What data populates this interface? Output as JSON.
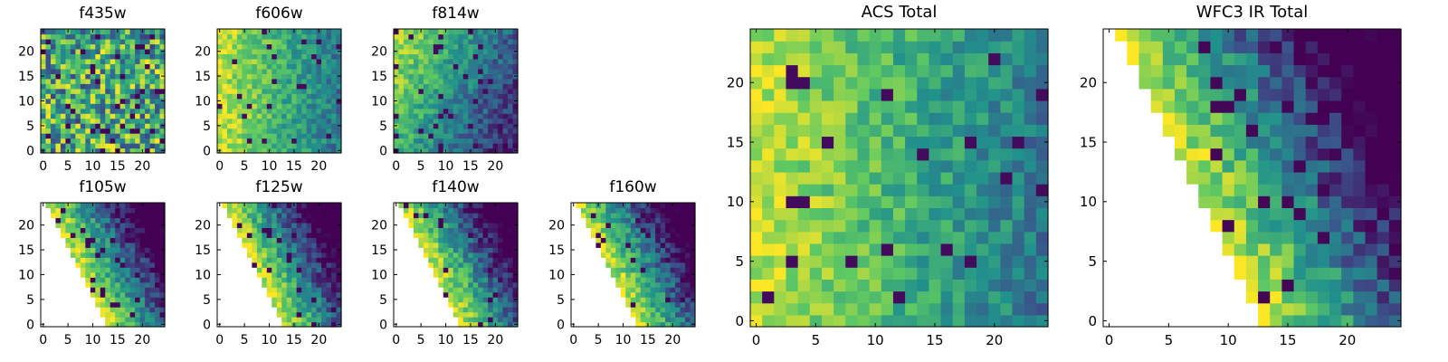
{
  "figure": {
    "colormap": "viridis",
    "colormap_stops": [
      "#440154",
      "#3b528b",
      "#21918c",
      "#5ec962",
      "#fde725"
    ],
    "masked_color": "#ffffff"
  },
  "chart_data": [
    {
      "id": "f435w",
      "type": "heatmap",
      "title": "f435w",
      "grid": false,
      "xlim": [
        0,
        24
      ],
      "ylim": [
        0,
        24
      ],
      "xticks": [
        "0",
        "5",
        "10",
        "15",
        "20"
      ],
      "yticks": [
        "0",
        "5",
        "10",
        "15",
        "20"
      ],
      "pattern": "noise",
      "bright_side": "none",
      "masked_region": "none",
      "approx_value_range": [
        0.0,
        1.0
      ]
    },
    {
      "id": "f606w",
      "type": "heatmap",
      "title": "f606w",
      "grid": false,
      "xlim": [
        0,
        24
      ],
      "ylim": [
        0,
        24
      ],
      "xticks": [
        "0",
        "5",
        "10",
        "15",
        "20"
      ],
      "yticks": [
        "0",
        "5",
        "10",
        "15",
        "20"
      ],
      "pattern": "gradient",
      "bright_side": "left",
      "masked_region": "none",
      "approx_value_range": [
        0.1,
        1.0
      ]
    },
    {
      "id": "f814w",
      "type": "heatmap",
      "title": "f814w",
      "grid": false,
      "xlim": [
        0,
        24
      ],
      "ylim": [
        0,
        24
      ],
      "xticks": [
        "0",
        "5",
        "10",
        "15",
        "20"
      ],
      "yticks": [
        "0",
        "5",
        "10",
        "15",
        "20"
      ],
      "pattern": "gradient",
      "bright_side": "upper-left",
      "masked_region": "none",
      "approx_value_range": [
        0.0,
        1.0
      ]
    },
    {
      "id": "f105w",
      "type": "heatmap",
      "title": "f105w",
      "grid": false,
      "xlim": [
        0,
        24
      ],
      "ylim": [
        0,
        24
      ],
      "xticks": [
        "0",
        "5",
        "10",
        "15",
        "20"
      ],
      "yticks": [
        "0",
        "5",
        "10",
        "15",
        "20"
      ],
      "pattern": "gradient",
      "bright_side": "upper-left",
      "masked_region": "lower-left triangle",
      "approx_value_range": [
        0.0,
        1.0
      ]
    },
    {
      "id": "f125w",
      "type": "heatmap",
      "title": "f125w",
      "grid": false,
      "xlim": [
        0,
        24
      ],
      "ylim": [
        0,
        24
      ],
      "xticks": [
        "0",
        "5",
        "10",
        "15",
        "20"
      ],
      "yticks": [
        "0",
        "5",
        "10",
        "15",
        "20"
      ],
      "pattern": "gradient",
      "bright_side": "upper-left",
      "masked_region": "lower-left triangle",
      "approx_value_range": [
        0.0,
        1.0
      ]
    },
    {
      "id": "f140w",
      "type": "heatmap",
      "title": "f140w",
      "grid": false,
      "xlim": [
        0,
        24
      ],
      "ylim": [
        0,
        24
      ],
      "xticks": [
        "0",
        "5",
        "10",
        "15",
        "20"
      ],
      "yticks": [
        "0",
        "5",
        "10",
        "15",
        "20"
      ],
      "pattern": "gradient",
      "bright_side": "upper-left",
      "masked_region": "lower-left triangle",
      "approx_value_range": [
        0.0,
        1.0
      ]
    },
    {
      "id": "f160w",
      "type": "heatmap",
      "title": "f160w",
      "grid": false,
      "xlim": [
        0,
        24
      ],
      "ylim": [
        0,
        24
      ],
      "xticks": [
        "0",
        "5",
        "10",
        "15",
        "20"
      ],
      "yticks": [
        "0",
        "5",
        "10",
        "15",
        "20"
      ],
      "pattern": "gradient",
      "bright_side": "upper-left",
      "masked_region": "lower-left triangle",
      "approx_value_range": [
        0.0,
        1.0
      ]
    },
    {
      "id": "acs-total",
      "type": "heatmap",
      "title": "ACS Total",
      "grid": false,
      "xlim": [
        0,
        24
      ],
      "ylim": [
        0,
        24
      ],
      "xticks": [
        "0",
        "5",
        "10",
        "15",
        "20"
      ],
      "yticks": [
        "0",
        "5",
        "10",
        "15",
        "20"
      ],
      "pattern": "gradient",
      "bright_side": "left",
      "masked_region": "none",
      "approx_value_range": [
        0.0,
        1.0
      ]
    },
    {
      "id": "wfc3-ir-total",
      "type": "heatmap",
      "title": "WFC3 IR Total",
      "grid": false,
      "xlim": [
        0,
        24
      ],
      "ylim": [
        0,
        24
      ],
      "xticks": [
        "0",
        "5",
        "10",
        "15",
        "20"
      ],
      "yticks": [
        "0",
        "5",
        "10",
        "15",
        "20"
      ],
      "pattern": "gradient",
      "bright_side": "upper-left",
      "masked_region": "lower-left triangle",
      "approx_value_range": [
        0.0,
        1.0
      ]
    }
  ]
}
